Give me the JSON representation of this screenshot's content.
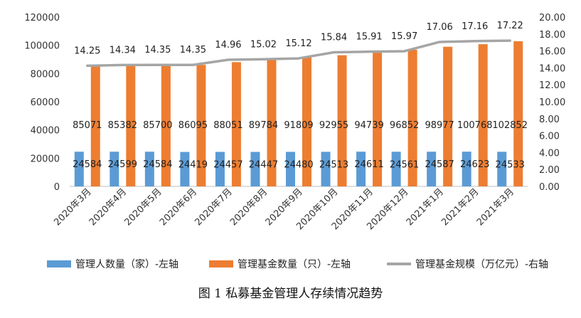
{
  "chart_data": {
    "type": "bar",
    "categories": [
      "2020年3月",
      "2020年4月",
      "2020年5月",
      "2020年6月",
      "2020年7月",
      "2020年8月",
      "2020年9月",
      "2020年10月",
      "2020年11月",
      "2020年12月",
      "2021年1月",
      "2021年2月",
      "2021年3月"
    ],
    "series": [
      {
        "name": "管理人数量（家）-左轴",
        "type": "bar",
        "axis": "left",
        "color": "#5B9BD5",
        "values": [
          24584,
          24599,
          24584,
          24419,
          24457,
          24447,
          24480,
          24513,
          24611,
          24561,
          24587,
          24623,
          24533
        ],
        "labels": [
          "24584",
          "24599",
          "24584",
          "24419",
          "24457",
          "24447",
          "24480",
          "24513",
          "24611",
          "24561",
          "24587",
          "24623",
          "24533"
        ]
      },
      {
        "name": "管理基金数量（只）-左轴",
        "type": "bar",
        "axis": "left",
        "color": "#ED7D31",
        "values": [
          85071,
          85382,
          85700,
          86095,
          88051,
          89784,
          91809,
          92955,
          94739,
          96852,
          98977,
          100768,
          102852
        ],
        "labels": [
          "85071",
          "85382",
          "85700",
          "86095",
          "88051",
          "89784",
          "91809",
          "92955",
          "94739",
          "96852",
          "98977",
          "100768",
          "102852"
        ]
      },
      {
        "name": "管理基金规模（万亿元）-右轴",
        "type": "line",
        "axis": "right",
        "color": "#A5A5A5",
        "values": [
          14.25,
          14.34,
          14.35,
          14.35,
          14.96,
          15.02,
          15.12,
          15.84,
          15.91,
          15.97,
          17.06,
          17.16,
          17.22
        ],
        "labels": [
          "14.25",
          "14.34",
          "14.35",
          "14.35",
          "14.96",
          "15.02",
          "15.12",
          "15.84",
          "15.91",
          "15.97",
          "17.06",
          "17.16",
          "17.22"
        ]
      }
    ],
    "y_left": {
      "min": 0,
      "max": 120000,
      "ticks": [
        "0",
        "20000",
        "40000",
        "60000",
        "80000",
        "100000",
        "120000"
      ]
    },
    "y_right": {
      "min": 0,
      "max": 20,
      "ticks": [
        "0.00",
        "2.00",
        "4.00",
        "6.00",
        "8.00",
        "10.00",
        "12.00",
        "14.00",
        "16.00",
        "18.00",
        "20.00"
      ]
    },
    "grid": false,
    "legend_position": "bottom"
  },
  "caption": "图 1  私募基金管理人存续情况趋势"
}
